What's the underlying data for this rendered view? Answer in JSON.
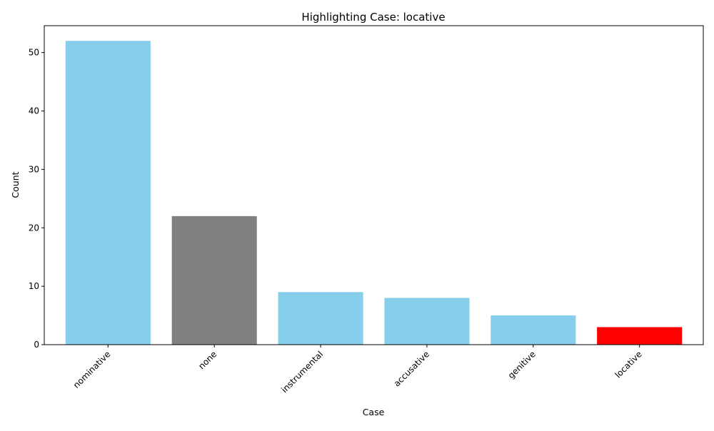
{
  "chart_data": {
    "type": "bar",
    "title": "Highlighting Case: locative",
    "xlabel": "Case",
    "ylabel": "Count",
    "categories": [
      "nominative",
      "none",
      "instrumental",
      "accusative",
      "genitive",
      "locative"
    ],
    "values": [
      52,
      22,
      9,
      8,
      5,
      3
    ],
    "bar_colors": [
      "#87CEEB",
      "#808080",
      "#87CEEB",
      "#87CEEB",
      "#87CEEB",
      "#FF0000"
    ],
    "ylim": [
      0,
      54.6
    ],
    "yticks": [
      0,
      10,
      20,
      30,
      40,
      50
    ],
    "x_tick_rotation": 45,
    "grid": false,
    "legend": "none"
  }
}
